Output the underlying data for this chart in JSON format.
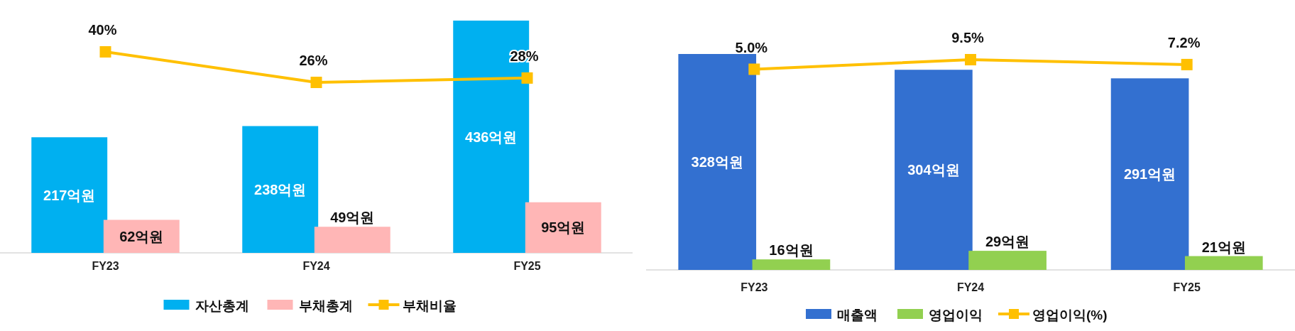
{
  "chart_data": [
    {
      "type": "bar",
      "categories": [
        "FY23",
        "FY24",
        "FY25"
      ],
      "tick_labels": "x",
      "legend": "bottom",
      "marker": "square",
      "series": [
        {
          "name": "자산총계",
          "color": "#00b0f0",
          "values": [
            217,
            238,
            436
          ],
          "value_labels": [
            "217억원",
            "238억원",
            "436억원"
          ]
        },
        {
          "name": "부채총계",
          "color": "#ffb6b6",
          "values": [
            62,
            49,
            95
          ],
          "value_labels": [
            "62억원",
            "49억원",
            "95억원"
          ]
        },
        {
          "name": "부채비율",
          "type": "line",
          "axis": "y2",
          "color": "#ffc000",
          "values": [
            40,
            26,
            28
          ],
          "value_labels": [
            "40%",
            "26%",
            "28%"
          ]
        }
      ]
    },
    {
      "type": "bar",
      "categories": [
        "FY23",
        "FY24",
        "FY25"
      ],
      "tick_labels": "x",
      "legend": "bottom",
      "marker": "square",
      "series": [
        {
          "name": "매출액",
          "color": "#3370d0",
          "values": [
            328,
            304,
            291
          ],
          "value_labels": [
            "328억원",
            "304억원",
            "291억원"
          ]
        },
        {
          "name": "영업이익",
          "color": "#92d050",
          "values": [
            16,
            29,
            21
          ],
          "value_labels": [
            "16억원",
            "29억원",
            "21억원"
          ]
        },
        {
          "name": "영업이익(%)",
          "type": "line",
          "axis": "y2",
          "color": "#ffc000",
          "values": [
            5.0,
            9.5,
            7.2
          ],
          "value_labels": [
            "5.0%",
            "9.5%",
            "7.2%"
          ]
        }
      ]
    }
  ]
}
